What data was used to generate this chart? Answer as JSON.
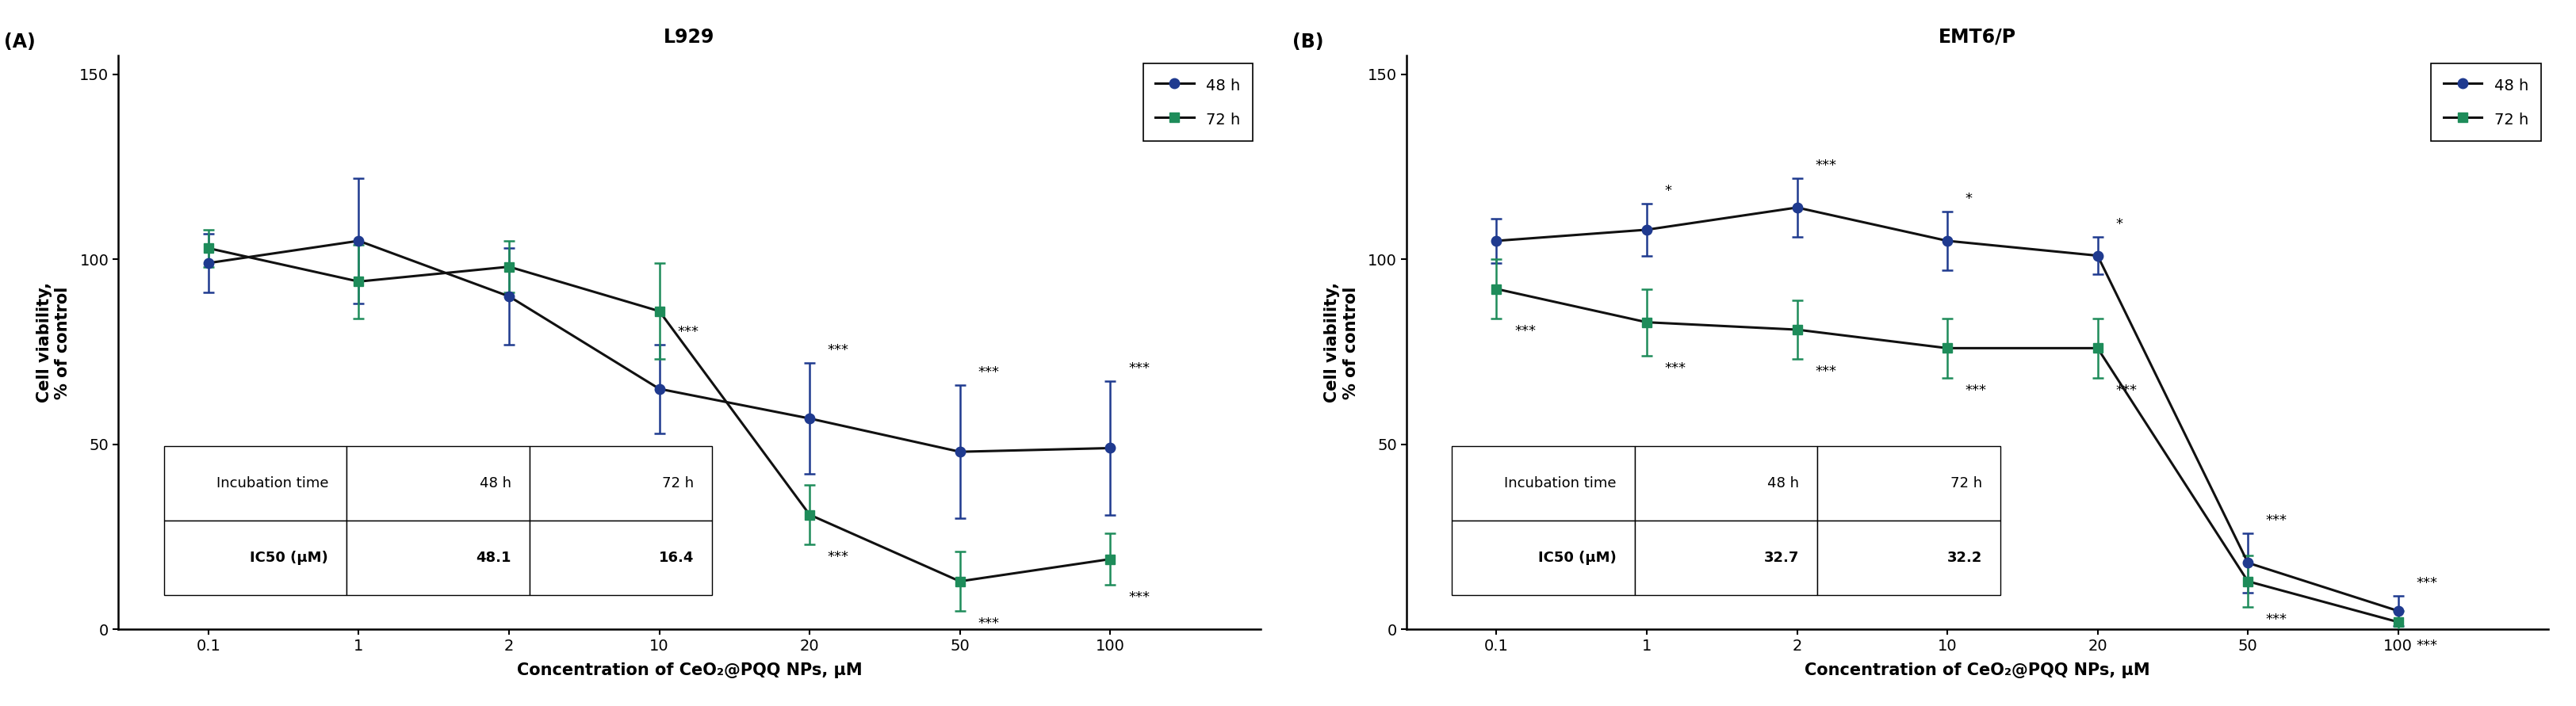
{
  "panel_A": {
    "title": "L929",
    "x_labels": [
      "0.1",
      "1",
      "2",
      "10",
      "20",
      "50",
      "100"
    ],
    "x_values": [
      0,
      1,
      2,
      3,
      4,
      5,
      6
    ],
    "series_48h": {
      "y": [
        99,
        105,
        90,
        65,
        57,
        48,
        49
      ],
      "yerr": [
        8,
        17,
        13,
        12,
        15,
        18,
        18
      ],
      "color": "#1f3a8f",
      "marker": "o",
      "label": "48 h"
    },
    "series_72h": {
      "y": [
        103,
        94,
        98,
        86,
        31,
        13,
        19
      ],
      "yerr": [
        5,
        10,
        7,
        13,
        8,
        8,
        7
      ],
      "color": "#1e8c5a",
      "marker": "s",
      "label": "72 h"
    },
    "significance_48h": [
      "",
      "",
      "",
      "***",
      "***",
      "***",
      "***"
    ],
    "significance_72h": [
      "",
      "",
      "",
      "",
      "***",
      "***",
      "***"
    ],
    "ic50_48h": "48.1",
    "ic50_72h": "16.4",
    "ylim": [
      0,
      155
    ],
    "yticks": [
      0,
      50,
      100,
      150
    ],
    "ylabel": "Cell viability,\n% of control",
    "xlabel": "Concentration of CeO₂@PQQ NPs, μM",
    "panel_label": "(A)"
  },
  "panel_B": {
    "title": "EMT6/P",
    "x_labels": [
      "0.1",
      "1",
      "2",
      "10",
      "20",
      "50",
      "100"
    ],
    "x_values": [
      0,
      1,
      2,
      3,
      4,
      5,
      6
    ],
    "series_48h": {
      "y": [
        105,
        108,
        114,
        105,
        101,
        18,
        5
      ],
      "yerr": [
        6,
        7,
        8,
        8,
        5,
        8,
        4
      ],
      "color": "#1f3a8f",
      "marker": "o",
      "label": "48 h"
    },
    "series_72h": {
      "y": [
        92,
        83,
        81,
        76,
        76,
        13,
        2
      ],
      "yerr": [
        8,
        9,
        8,
        8,
        8,
        7,
        3
      ],
      "color": "#1e8c5a",
      "marker": "s",
      "label": "72 h"
    },
    "significance_48h": [
      "",
      "*",
      "***",
      "*",
      "*",
      "***",
      "***"
    ],
    "significance_72h": [
      "***",
      "***",
      "***",
      "***",
      "***",
      "***",
      "***"
    ],
    "ic50_48h": "32.7",
    "ic50_72h": "32.2",
    "ylim": [
      0,
      155
    ],
    "yticks": [
      0,
      50,
      100,
      150
    ],
    "ylabel": "Cell viability,\n% of control",
    "xlabel": "Concentration of CeO₂@PQQ NPs, μM",
    "panel_label": "(B)"
  },
  "line_color": "#111111",
  "line_width": 2.2,
  "marker_size": 9,
  "capsize": 5,
  "elinewidth": 1.8,
  "fig_bg": "#ffffff",
  "axis_bg": "#ffffff"
}
